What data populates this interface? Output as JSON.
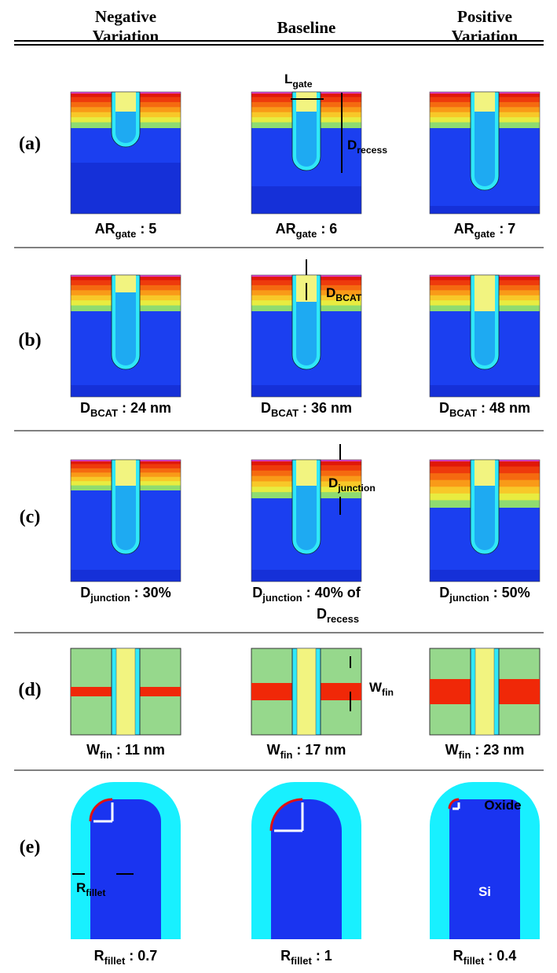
{
  "columns": [
    [
      "Negative",
      "Variation"
    ],
    [
      "Baseline"
    ],
    [
      "Positive",
      "Variation"
    ]
  ],
  "rows": [
    {
      "label": "(a)",
      "captions": [
        {
          "main": "AR",
          "sub": "gate",
          "rest": ": 5"
        },
        {
          "main": "AR",
          "sub": "gate",
          "rest": ": 6"
        },
        {
          "main": "AR",
          "sub": "gate",
          "rest": ": 7"
        }
      ]
    },
    {
      "label": "(b)",
      "captions": [
        {
          "main": "D",
          "sub": "BCAT",
          "rest": ": 24 nm"
        },
        {
          "main": "D",
          "sub": "BCAT",
          "rest": ": 36 nm"
        },
        {
          "main": "D",
          "sub": "BCAT",
          "rest": ": 48 nm"
        }
      ]
    },
    {
      "label": "(c)",
      "captions": [
        {
          "main": "D",
          "sub": "junction",
          "rest": ": 30%"
        },
        {
          "main": "D",
          "sub": "junction",
          "rest": ": 40% of",
          "main2": "D",
          "sub2": "recess"
        },
        {
          "main": "D",
          "sub": "junction",
          "rest": ": 50%"
        }
      ]
    },
    {
      "label": "(d)",
      "captions": [
        {
          "main": "W",
          "sub": "fin",
          "rest": ": 11 nm"
        },
        {
          "main": "W",
          "sub": "fin",
          "rest": ": 17 nm"
        },
        {
          "main": "W",
          "sub": "fin",
          "rest": ": 23 nm"
        }
      ]
    },
    {
      "label": "(e)",
      "captions": [
        {
          "main": "R",
          "sub": "fillet",
          "rest": ": 0.7"
        },
        {
          "main": "R",
          "sub": "fillet",
          "rest": ": 1"
        },
        {
          "main": "R",
          "sub": "fillet",
          "rest": ": 0.4"
        }
      ]
    }
  ],
  "annotations": {
    "l_gate": {
      "main": "L",
      "sub": "gate"
    },
    "d_recess": {
      "main": "D",
      "sub": "recess"
    },
    "d_bcat": {
      "main": "D",
      "sub": "BCAT"
    },
    "d_junction": {
      "main": "D",
      "sub": "junction"
    },
    "w_fin": {
      "main": "W",
      "sub": "fin"
    },
    "r_fillet": {
      "main": "R",
      "sub": "fillet"
    },
    "oxide": "Oxide",
    "si": "Si"
  }
}
